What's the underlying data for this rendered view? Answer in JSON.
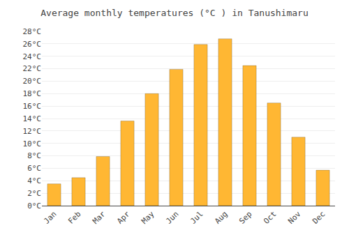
{
  "chart_data": {
    "type": "bar",
    "title": "Average monthly temperatures (°C ) in Tanushimaru",
    "categories": [
      "Jan",
      "Feb",
      "Mar",
      "Apr",
      "May",
      "Jun",
      "Jul",
      "Aug",
      "Sep",
      "Oct",
      "Nov",
      "Dec"
    ],
    "values": [
      3.5,
      4.5,
      7.9,
      13.6,
      18.0,
      21.9,
      25.9,
      26.8,
      22.5,
      16.5,
      11.0,
      5.7
    ],
    "color": "#FFB733",
    "ylim": [
      0,
      28
    ],
    "yticks": [
      {
        "value": 0,
        "label": "0°C"
      },
      {
        "value": 2,
        "label": "2°C"
      },
      {
        "value": 4,
        "label": "4°C"
      },
      {
        "value": 6,
        "label": "6°C"
      },
      {
        "value": 8,
        "label": "8°C"
      },
      {
        "value": 10,
        "label": "10°C"
      },
      {
        "value": 12,
        "label": "12°C"
      },
      {
        "value": 14,
        "label": "14°C"
      },
      {
        "value": 16,
        "label": "16°C"
      },
      {
        "value": 18,
        "label": "18°C"
      },
      {
        "value": 20,
        "label": "20°C"
      },
      {
        "value": 22,
        "label": "22°C"
      },
      {
        "value": 24,
        "label": "24°C"
      },
      {
        "value": 26,
        "label": "26°C"
      },
      {
        "value": 28,
        "label": "28°C"
      }
    ],
    "grid": true
  }
}
